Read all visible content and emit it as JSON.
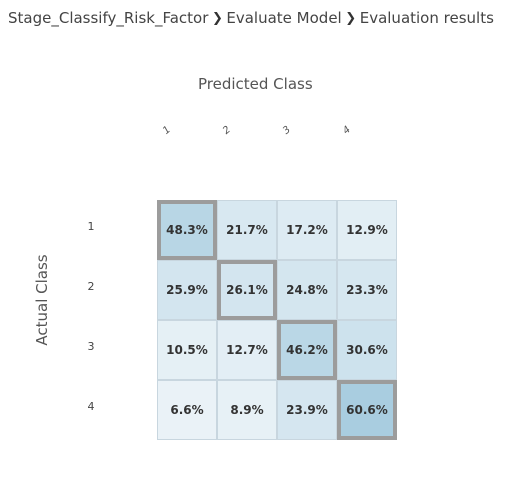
{
  "breadcrumb": {
    "items": [
      "Stage_Classify_Risk_Factor",
      "Evaluate Model",
      "Evaluation results"
    ],
    "separator": "❯"
  },
  "matrix": {
    "predicted_title": "Predicted Class",
    "actual_title": "Actual Class",
    "col_labels": [
      "1",
      "2",
      "3",
      "4"
    ],
    "row_labels": [
      "1",
      "2",
      "3",
      "4"
    ],
    "rows": [
      [
        "48.3%",
        "21.7%",
        "17.2%",
        "12.9%"
      ],
      [
        "25.9%",
        "26.1%",
        "24.8%",
        "23.3%"
      ],
      [
        "10.5%",
        "12.7%",
        "46.2%",
        "30.6%"
      ],
      [
        "6.6%",
        "8.9%",
        "23.9%",
        "60.6%"
      ]
    ],
    "colors": {
      "low": "#f2f7fa",
      "high": "#a9cde0",
      "diagonal_border": "#9c9c9c"
    }
  }
}
